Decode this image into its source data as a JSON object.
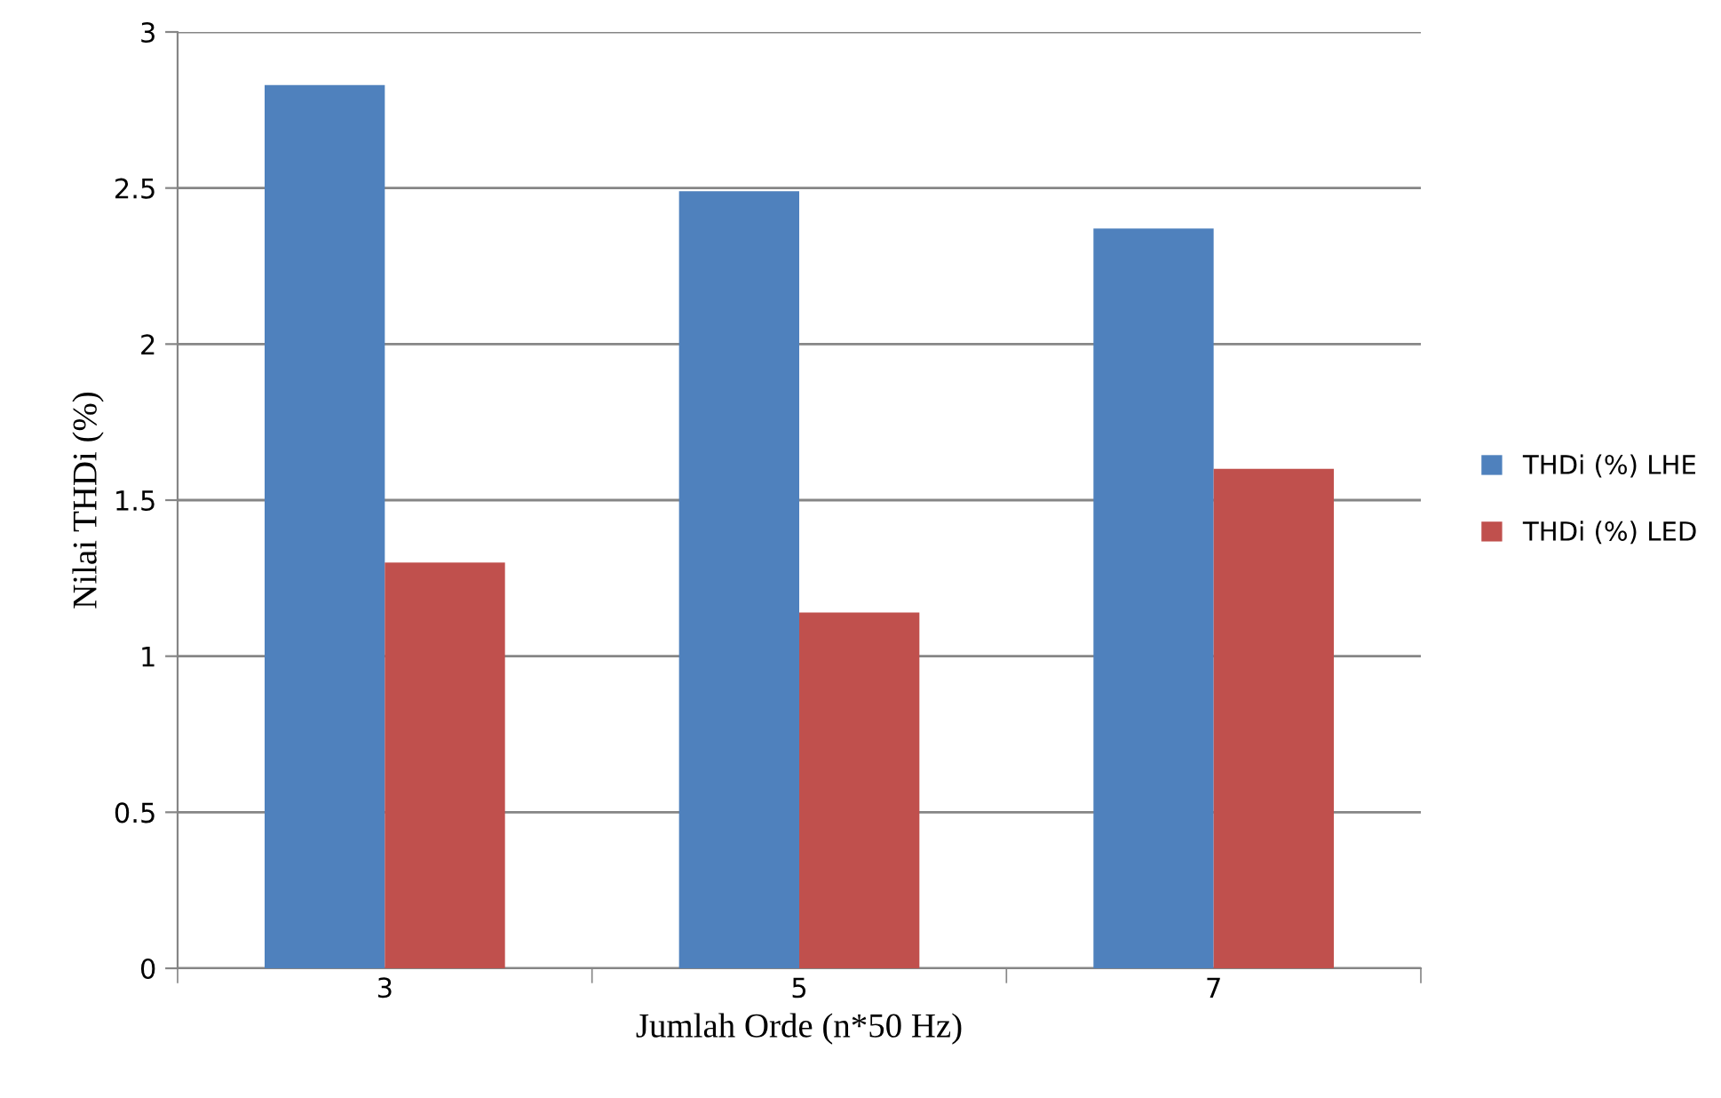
{
  "chart_data": {
    "type": "bar",
    "xlabel": "Jumlah Orde (n*50 Hz)",
    "ylabel": "Nilai THDi (%)",
    "categories": [
      "3",
      "5",
      "7"
    ],
    "series": [
      {
        "name": "THDi (%) LHE",
        "color": "#4f81bd",
        "values": [
          2.83,
          2.49,
          2.37
        ]
      },
      {
        "name": "THDi (%) LED",
        "color": "#c0504d",
        "values": [
          1.3,
          1.14,
          1.6
        ]
      }
    ],
    "ylim": [
      0,
      3
    ],
    "yticks": [
      0,
      0.5,
      1,
      1.5,
      2,
      2.5,
      3
    ],
    "grid": "y",
    "legend": "right"
  }
}
